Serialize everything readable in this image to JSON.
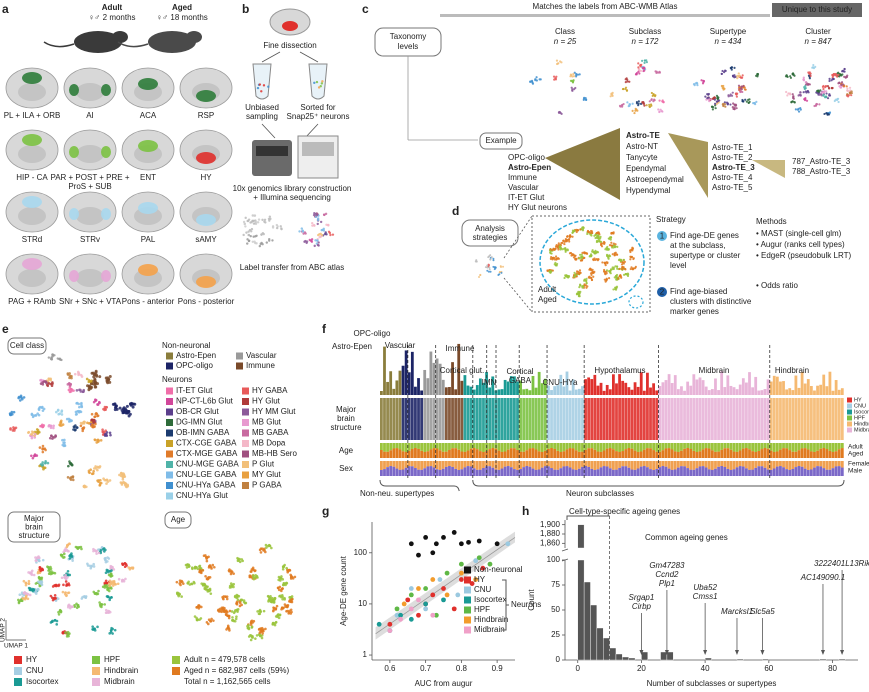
{
  "a": {
    "letter": "a",
    "adult": "Adult",
    "adult_age": "♀♂ 2 months",
    "aged": "Aged",
    "aged_age": "♀♂ 18 months",
    "regions": [
      {
        "lines": [
          "PL + ILA + ORB"
        ],
        "color": "#2f7d3b"
      },
      {
        "lines": [
          "AI"
        ],
        "color": "#2f7d3b"
      },
      {
        "lines": [
          "ACA"
        ],
        "color": "#2f7d3b"
      },
      {
        "lines": [
          "RSP"
        ],
        "color": "#2f7d3b"
      },
      {
        "lines": [
          "HIP - CA"
        ],
        "color": "#7cc242"
      },
      {
        "lines": [
          "PAR + POST + PRE +",
          "ProS + SUB"
        ],
        "color": "#7cc242"
      },
      {
        "lines": [
          "ENT"
        ],
        "color": "#7cc242"
      },
      {
        "lines": [
          "HY"
        ],
        "color": "#e0302c"
      },
      {
        "lines": [
          "STRd"
        ],
        "color": "#a8d8ee"
      },
      {
        "lines": [
          "STRv"
        ],
        "color": "#a8d8ee"
      },
      {
        "lines": [
          "PAL"
        ],
        "color": "#a8d8ee"
      },
      {
        "lines": [
          "sAMY"
        ],
        "color": "#a8d8ee"
      },
      {
        "lines": [
          "PAG + RAmb"
        ],
        "color": "#e6a6d6"
      },
      {
        "lines": [
          "SNr + SNc + VTA"
        ],
        "color": "#e6a6d6"
      },
      {
        "lines": [
          "Pons - anterior"
        ],
        "color": "#f5a24a"
      },
      {
        "lines": [
          "Pons - posterior"
        ],
        "color": "#f5a24a"
      }
    ]
  },
  "b": {
    "letter": "b",
    "dissection": "Fine dissection",
    "unbiased": [
      "Unbiased",
      "sampling"
    ],
    "sorted": [
      "Sorted for",
      "Snap25⁺ neurons"
    ],
    "sequencing": [
      "10x genomics library construction",
      "+ Illumina sequencing"
    ],
    "transfer": "Label transfer from ABC atlas"
  },
  "c": {
    "letter": "c",
    "shared": "Matches the labels from ABC-WMB Atlas",
    "unique": "Unique to this study",
    "taxonomy": [
      "Taxonomy",
      "levels"
    ],
    "levels": [
      {
        "name": "Class",
        "n": "n = 25"
      },
      {
        "name": "Subclass",
        "n": "n = 172"
      },
      {
        "name": "Supertype",
        "n": "n = 434"
      },
      {
        "name": "Cluster",
        "n": "n = 847"
      }
    ],
    "example": "Example",
    "classes": [
      "OPC-oligo",
      "Astro-Epen",
      "Immune",
      "Vascular",
      "IT-ET Glut",
      "HY Glut neurons"
    ],
    "subclasses": [
      "Astro-TE",
      "Astro-NT",
      "Tanycyte",
      "Ependymal",
      "Astroependymal",
      "Hypendymal"
    ],
    "supertypes": [
      "Astro-TE_1",
      "Astro-TE_2",
      "Astro-TE_3",
      "Astro-TE_4",
      "Astro-TE_5"
    ],
    "clusters": [
      "787_Astro-TE_3",
      "788_Astro-TE_3"
    ]
  },
  "d": {
    "letter": "d",
    "box": [
      "Analysis",
      "strategies"
    ],
    "strategy": "Strategy",
    "step1_num": "1",
    "step1": [
      "Find age-DE genes",
      "at the subclass,",
      "supertype or cluster",
      "level"
    ],
    "step2_num": "2",
    "step2": [
      "Find age-biased",
      "clusters with distinctive",
      "marker genes"
    ],
    "adult": "Adult",
    "aged": "Aged",
    "adult_color": "#9ac43c",
    "aged_color": "#e07a20",
    "methods": "Methods",
    "method_list": [
      "• MAST (single-cell glm)",
      "• Augur (ranks cell types)",
      "• EdgeR (pseudobulk LRT)"
    ],
    "odds": "• Odds ratio"
  },
  "e": {
    "letter": "e",
    "cell_class": "Cell class",
    "non_neuronal": "Non-neuronal",
    "non_neuronal_items": [
      {
        "name": "Astro-Epen",
        "color": "#8a7d3c"
      },
      {
        "name": "Vascular",
        "color": "#9a9a9a"
      },
      {
        "name": "OPC-oligo",
        "color": "#1c2466"
      },
      {
        "name": "Immune",
        "color": "#7a4a2a"
      }
    ],
    "neurons": "Neurons",
    "neuron_items": [
      {
        "name": "IT-ET Glut",
        "color": "#f06ea9"
      },
      {
        "name": "NP-CT-L6b Glut",
        "color": "#d1479a"
      },
      {
        "name": "OB-CR Glut",
        "color": "#5b3f8c"
      },
      {
        "name": "DG-IMN Glut",
        "color": "#2e6b3a"
      },
      {
        "name": "OB-IMN GABA",
        "color": "#1b3b6f"
      },
      {
        "name": "CTX-CGE GABA",
        "color": "#c9a227"
      },
      {
        "name": "CTX-MGE GABA",
        "color": "#e07b2a"
      },
      {
        "name": "CNU-MGE GABA",
        "color": "#4fb3a8"
      },
      {
        "name": "CNU-LGE GABA",
        "color": "#7fbce8"
      },
      {
        "name": "CNU-HYa GABA",
        "color": "#3f8fcf"
      },
      {
        "name": "CNU-HYa Glut",
        "color": "#9ad0e8"
      },
      {
        "name": "HY GABA",
        "color": "#e85a5a"
      },
      {
        "name": "HY Glut",
        "color": "#b03a3a"
      },
      {
        "name": "HY MM Glut",
        "color": "#8c5a9a"
      },
      {
        "name": "MB Glut",
        "color": "#e89ad0"
      },
      {
        "name": "MB GABA",
        "color": "#c86aa0"
      },
      {
        "name": "MB Dopa",
        "color": "#f4b8c8"
      },
      {
        "name": "MB-HB Sero",
        "color": "#a05080"
      },
      {
        "name": "P Glut",
        "color": "#f2c07a"
      },
      {
        "name": "MY Glut",
        "color": "#e8a040"
      },
      {
        "name": "P GABA",
        "color": "#c08040"
      }
    ],
    "structure": [
      "Major",
      "brain",
      "structure"
    ],
    "age": "Age",
    "structure_items": [
      {
        "name": "HY",
        "color": "#e0302c"
      },
      {
        "name": "HPF",
        "color": "#7cc242"
      },
      {
        "name": "CNU",
        "color": "#a6cee3"
      },
      {
        "name": "Hindbrain",
        "color": "#f5b971"
      },
      {
        "name": "Isocortex",
        "color": "#1a9a94"
      },
      {
        "name": "Midbrain",
        "color": "#e8b4d8"
      }
    ],
    "age_items": [
      {
        "name": "Adult n = 479,578 cells",
        "color": "#9ac43c"
      },
      {
        "name": "Aged n = 682,987 cells (59%)",
        "color": "#e07a20"
      },
      {
        "name": "Total n = 1,162,565 cells"
      }
    ],
    "umap1": "UMAP 1",
    "umap2": "UMAP 2"
  },
  "f": {
    "letter": "f",
    "groups": [
      {
        "lines": [
          "Astro-Epen"
        ]
      },
      {
        "lines": [
          "OPC-oligo"
        ]
      },
      {
        "lines": [
          "Vascular"
        ]
      },
      {
        "lines": [
          "Immune"
        ]
      },
      {
        "lines": [
          "Cortical glut."
        ]
      },
      {
        "lines": [
          "IMN"
        ]
      },
      {
        "lines": [
          "Cortical",
          "GABA"
        ]
      },
      {
        "lines": [
          "CNU-HYa"
        ]
      },
      {
        "lines": [
          "Hypothalamus"
        ]
      },
      {
        "lines": [
          "Midbrain"
        ]
      },
      {
        "lines": [
          "Hindbrain"
        ]
      }
    ],
    "rows": [
      [
        "Major",
        "brain",
        "structure"
      ],
      [
        "Age"
      ],
      [
        "Sex"
      ]
    ],
    "structure_legend": [
      {
        "name": "HY",
        "color": "#e0302c"
      },
      {
        "name": "CNU",
        "color": "#a6cee3"
      },
      {
        "name": "Isocortex",
        "color": "#1a9a94"
      },
      {
        "name": "HPF",
        "color": "#7cc242"
      },
      {
        "name": "Hindbrain",
        "color": "#f5b971"
      },
      {
        "name": "Midbrain",
        "color": "#e8b4d8"
      }
    ],
    "age_legend": [
      {
        "name": "Adult",
        "color": "#9ac43c"
      },
      {
        "name": "Aged",
        "color": "#e07a20"
      }
    ],
    "sex_legend": [
      {
        "name": "Female",
        "color": "#f0a050"
      },
      {
        "name": "Male",
        "color": "#7b68c8"
      }
    ],
    "bottom_left": "Non-neu. supertypes",
    "bottom_right": "Neuron subclasses"
  },
  "g": {
    "letter": "g",
    "chart_data": {
      "type": "scatter",
      "xlabel": "AUC from augur",
      "ylabel": "Age-DE gene count",
      "log_y": true,
      "xlim": [
        0.55,
        0.95
      ],
      "ylim": [
        0.8,
        400
      ],
      "xticks": [
        0.6,
        0.7,
        0.8,
        0.9
      ],
      "yticks": [
        1,
        10,
        100
      ],
      "group_label": "Neurons",
      "series": [
        {
          "name": "Non-neuronal",
          "color": "#111111",
          "x": [
            0.66,
            0.7,
            0.73,
            0.75,
            0.78,
            0.8,
            0.82,
            0.85,
            0.9,
            0.72,
            0.68
          ],
          "values": [
            150,
            200,
            150,
            200,
            250,
            150,
            160,
            170,
            150,
            100,
            90
          ]
        },
        {
          "name": "HY",
          "color": "#e0302c",
          "x": [
            0.6,
            0.65,
            0.7,
            0.75,
            0.78,
            0.8,
            0.83,
            0.86,
            0.72,
            0.68
          ],
          "values": [
            4,
            12,
            10,
            20,
            8,
            30,
            25,
            50,
            15,
            6
          ]
        },
        {
          "name": "CNU",
          "color": "#9bc9e0",
          "x": [
            0.62,
            0.66,
            0.7,
            0.74,
            0.79,
            0.84,
            0.93
          ],
          "values": [
            6,
            20,
            8,
            30,
            15,
            70,
            150
          ]
        },
        {
          "name": "Isocortex",
          "color": "#1a9a94",
          "x": [
            0.57,
            0.6,
            0.63,
            0.66,
            0.7,
            0.75
          ],
          "values": [
            4,
            3,
            6,
            5,
            10,
            12
          ]
        },
        {
          "name": "HPF",
          "color": "#5fb846",
          "x": [
            0.62,
            0.66,
            0.7,
            0.73,
            0.76,
            0.8,
            0.85,
            0.88
          ],
          "values": [
            8,
            15,
            20,
            6,
            40,
            60,
            80,
            60
          ]
        },
        {
          "name": "Hindbrain",
          "color": "#f39c2c",
          "x": [
            0.64,
            0.68,
            0.72,
            0.76,
            0.8,
            0.84
          ],
          "values": [
            10,
            20,
            30,
            15,
            40,
            30
          ]
        },
        {
          "name": "Midbrain",
          "color": "#f0a0c8",
          "x": [
            0.6,
            0.63,
            0.66,
            0.68,
            0.72
          ],
          "values": [
            3,
            5,
            8,
            12,
            6
          ]
        }
      ]
    }
  },
  "h": {
    "letter": "h",
    "chart_data": {
      "type": "histogram",
      "xlabel": "Number of subclasses or supertypes",
      "ylabel": "Count",
      "color": "#555555",
      "bins": [
        0,
        2,
        4,
        6,
        8,
        10,
        12,
        14,
        16,
        18,
        20,
        22,
        24,
        26,
        28,
        30,
        32,
        34,
        36,
        38,
        40,
        42,
        44,
        46,
        48,
        50,
        52,
        54,
        56,
        58,
        60,
        62,
        64,
        66,
        68,
        70,
        72,
        74,
        76,
        78,
        80,
        82,
        84,
        86
      ],
      "values": [
        1900,
        78,
        55,
        32,
        22,
        12,
        6,
        3,
        2,
        0,
        8,
        0,
        0,
        8,
        8,
        0,
        0,
        0,
        0,
        0,
        2,
        0,
        0,
        0,
        0,
        1,
        0,
        0,
        0,
        1,
        0,
        0,
        0,
        0,
        0,
        0,
        0,
        0,
        1,
        0,
        0,
        1,
        0
      ],
      "xlim": [
        -4,
        88
      ],
      "xticks": [
        0,
        20,
        40,
        60,
        80
      ],
      "ylim": [
        0,
        1910
      ],
      "y_break": [
        100,
        1850
      ],
      "yticks": [
        0,
        25,
        50,
        75,
        100,
        {
          "value": 1860,
          "label": "1,860"
        },
        {
          "value": 1880,
          "label": "1,880"
        },
        {
          "value": 1900,
          "label": "1,900"
        }
      ],
      "cutoff_x": 10,
      "specific": "Cell-type-specific ageing genes",
      "common": "Common ageing genes",
      "genes": [
        {
          "x": 20,
          "names": [
            "Srgap1",
            "Cirbp"
          ]
        },
        {
          "x": 28,
          "names": [
            "Gm47283",
            "Ccnd2",
            "Plp1"
          ]
        },
        {
          "x": 40,
          "names": [
            "Uba52",
            "Cmss1"
          ]
        },
        {
          "x": 50,
          "names": [
            "Marcksl1"
          ]
        },
        {
          "x": 58,
          "names": [
            "Slc5a5"
          ]
        },
        {
          "x": 77,
          "names": [
            "AC149090.1"
          ]
        },
        {
          "x": 83,
          "names": [
            "3222401L13Rik"
          ]
        }
      ]
    }
  }
}
